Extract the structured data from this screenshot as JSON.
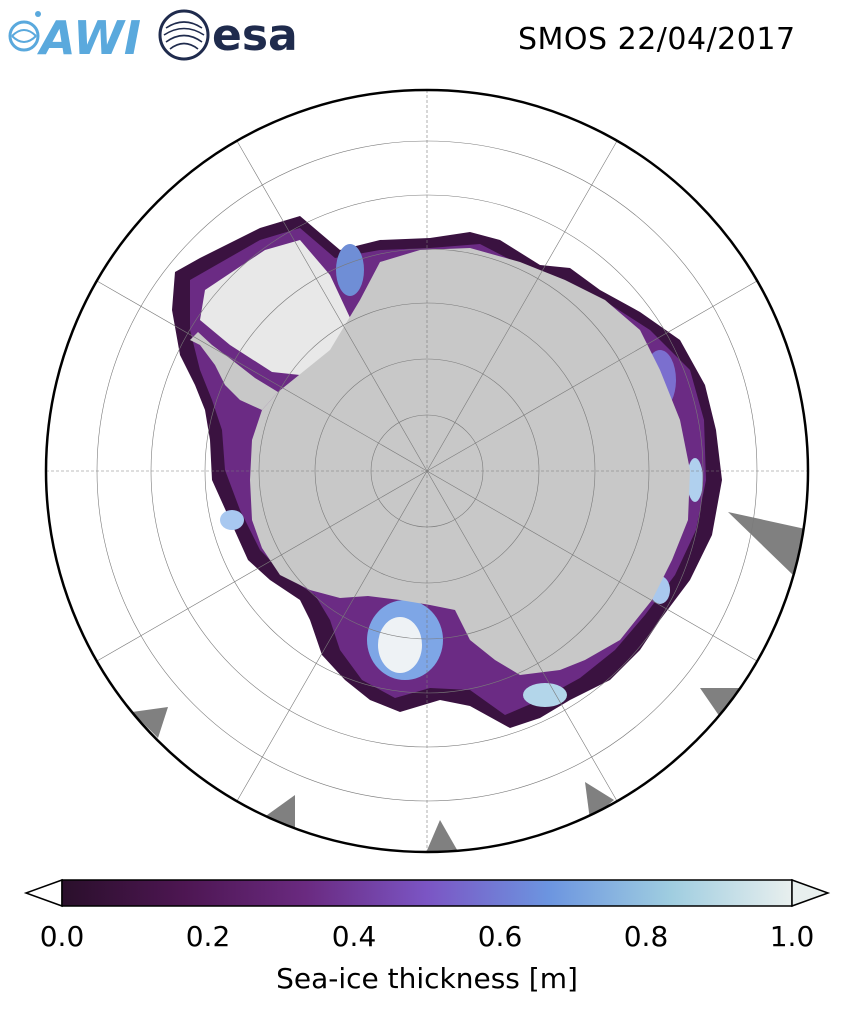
{
  "header": {
    "logo_left": "AWI",
    "logo_right": "esa",
    "title": "SMOS 22/04/2017"
  },
  "colorbar": {
    "label": "Sea-ice thickness [m]",
    "min": 0.0,
    "max": 1.0,
    "ticks": [
      "0.0",
      "0.2",
      "0.4",
      "0.6",
      "0.8",
      "1.0"
    ],
    "colors": [
      "#2a0f2b",
      "#4d1652",
      "#6a2a80",
      "#7b55c4",
      "#6c95e0",
      "#9fcde0",
      "#e8efee"
    ],
    "extend": "both"
  },
  "map": {
    "projection": "south-polar-stereographic",
    "land_color": "#c8c8c8",
    "ice_shelf_color": "#e8e8e8",
    "missing_color": "#808080",
    "grid": true
  }
}
